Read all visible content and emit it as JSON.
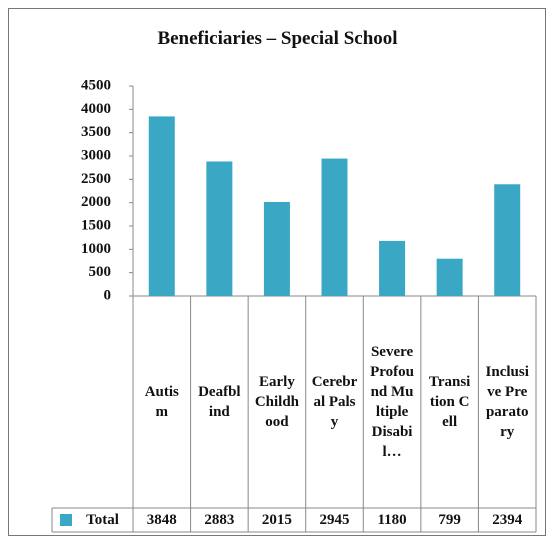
{
  "chart_data": {
    "type": "bar",
    "title": "Beneficiaries – Special School",
    "categories": [
      "Autism",
      "Deafblind",
      "Early Childhood",
      "Cerebral Palsy",
      "Severe Profound Multiple Disabil…",
      "Transition Cell",
      "Inclusive Preparatory"
    ],
    "series": [
      {
        "name": "Total",
        "color": "#3aa8c4",
        "values": [
          3848,
          2883,
          2015,
          2945,
          1180,
          799,
          2394
        ]
      }
    ],
    "ylim": [
      0,
      4500
    ],
    "yticks": [
      0,
      500,
      1000,
      1500,
      2000,
      2500,
      3000,
      3500,
      4000,
      4500
    ],
    "grid": false
  }
}
